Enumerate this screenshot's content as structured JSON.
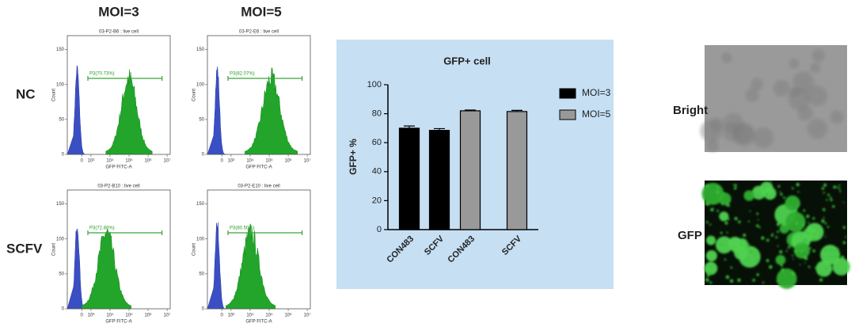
{
  "column_labels": [
    "MOI=3",
    "MOI=5"
  ],
  "row_labels": [
    "NC",
    "SCFV"
  ],
  "flow_panels": [
    {
      "title": "03-P2-B6 : live cell",
      "gate": "P3(70.73%)"
    },
    {
      "title": "03-P2-E6 : live cell",
      "gate": "P3(82.07%)"
    },
    {
      "title": "03-P2-B10 : live cell",
      "gate": "P3(72.80%)"
    },
    {
      "title": "03-P2-E10 : live cell",
      "gate": "P3(80.50%)"
    }
  ],
  "flow_axis": {
    "x_label": "GFP FITC-A",
    "y_label": "Count",
    "ylim": [
      0,
      170
    ],
    "yticks": [
      0,
      50,
      100,
      150
    ],
    "xticks": [
      {
        "value": 0,
        "label": "0"
      },
      {
        "value": 1000,
        "label": "10³"
      },
      {
        "value": 10000,
        "label": "10⁴"
      },
      {
        "value": 100000,
        "label": "10⁵"
      },
      {
        "value": 1000000,
        "label": "10⁶"
      },
      {
        "value": 10000000,
        "label": "10⁷"
      }
    ]
  },
  "chart_data": {
    "type": "bar",
    "title": "GFP+ cell",
    "y_label": "GFP+ %",
    "categories": [
      "CON483",
      "SCFV"
    ],
    "series": [
      {
        "name": "MOI=3",
        "color": "#000000",
        "values": [
          70,
          68.5
        ],
        "errors": [
          1.5,
          1.2
        ]
      },
      {
        "name": "MOI=5",
        "color": "#999999",
        "values": [
          82,
          81.5
        ],
        "errors": [
          0.5,
          0.8
        ]
      }
    ],
    "ylim": [
      0,
      100
    ],
    "yticks": [
      0,
      20,
      40,
      60,
      80,
      100
    ]
  },
  "image_labels": [
    "Bright",
    "GFP"
  ]
}
